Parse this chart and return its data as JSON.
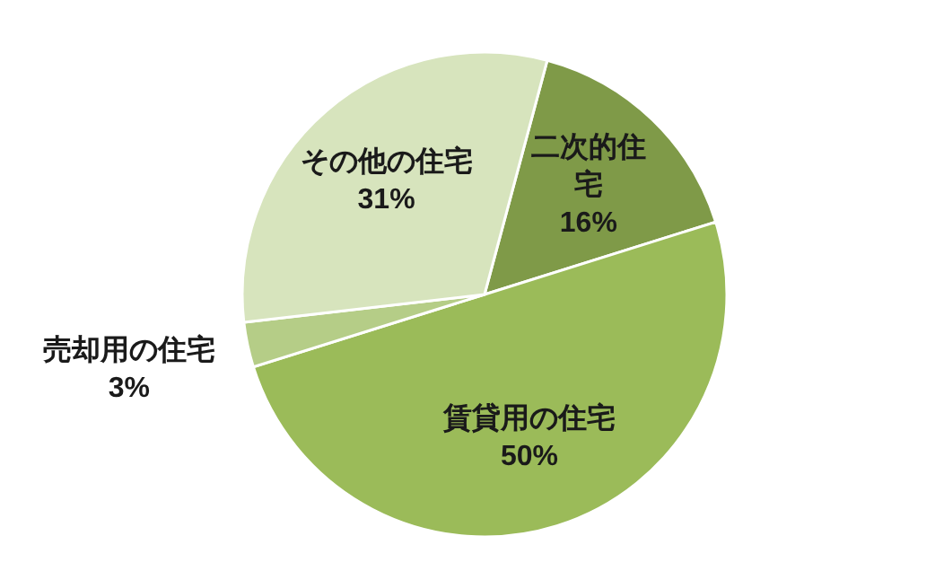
{
  "chart_data": {
    "type": "pie",
    "categories": [
      "二次的住宅",
      "賃貸用の住宅",
      "売却用の住宅",
      "その他の住宅"
    ],
    "values": [
      16,
      50,
      3,
      31
    ],
    "value_labels": [
      "16%",
      "50%",
      "3%",
      "31%"
    ],
    "colors": [
      "#7f9a48",
      "#9bbb59",
      "#b5cd87",
      "#d7e4bd"
    ],
    "legend": false
  }
}
